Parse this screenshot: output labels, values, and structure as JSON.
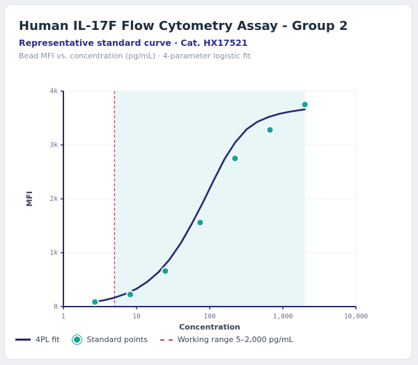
{
  "header": {
    "title": "Human IL-17F Flow Cytometry Assay - Group 2",
    "subtitle": "Representative standard curve · Cat. HX17521",
    "note": "Bead MFI vs. concentration (pg/mL) · 4-parameter logistic fit"
  },
  "chart_data": {
    "type": "scatter",
    "xlabel": "Concentration",
    "ylabel": "MFI",
    "x_scale": "log",
    "xlim": [
      1,
      10000
    ],
    "ylim": [
      0,
      4000
    ],
    "x_ticks": [
      1,
      10,
      100,
      1000,
      10000
    ],
    "x_tick_labels": [
      "1",
      "10",
      "100",
      "1,000",
      "10,000"
    ],
    "y_ticks": [
      0,
      1000,
      2000,
      3000,
      4000
    ],
    "y_tick_labels": [
      "0",
      "1k",
      "2k",
      "3k",
      "4k"
    ],
    "grid": true,
    "legend_position": "bottom-left",
    "working_range": {
      "min": 5,
      "max": 2000,
      "label": "Working range 5–2,000 pg/mL"
    },
    "series": [
      {
        "name": "4PL fit",
        "kind": "line",
        "color": "#27287a",
        "x": [
          2.5,
          3.5,
          5,
          7,
          10,
          14,
          20,
          28,
          40,
          56,
          80,
          112,
          160,
          224,
          320,
          448,
          640,
          900,
          1280,
          2000
        ],
        "y": [
          85,
          115,
          165,
          235,
          330,
          460,
          640,
          870,
          1170,
          1520,
          1920,
          2330,
          2740,
          3050,
          3290,
          3430,
          3520,
          3580,
          3620,
          3660
        ]
      },
      {
        "name": "Standard points",
        "kind": "points",
        "color": "#17a398",
        "x": [
          2.7,
          8.2,
          24.7,
          74,
          222,
          667,
          2000
        ],
        "y": [
          85,
          225,
          660,
          1560,
          2750,
          3280,
          3750
        ]
      }
    ]
  },
  "legend": {
    "fit": "4PL fit",
    "points": "Standard points",
    "range": "Working range 5–2,000 pg/mL"
  },
  "colors": {
    "curve": "#27287a",
    "points": "#17a398",
    "range_line": "#c74452",
    "range_fill": "#e8f7f6"
  }
}
